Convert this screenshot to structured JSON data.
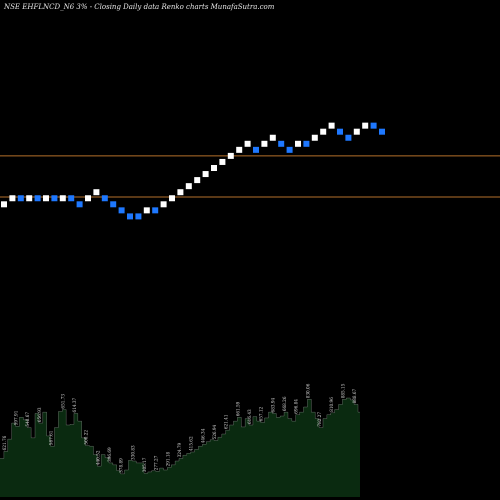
{
  "chart_data": {
    "type": "renko",
    "title": "NSE EHFLNCD_N6  3% - Closing Daily data  Renko  charts MunafaSutra.com",
    "colors": {
      "background": "#000000",
      "up_brick": "#ffffff",
      "down_brick": "#1e78ff",
      "reference_line": "#b5702b",
      "volume_fill": "#0a2a10",
      "volume_edge": "#e8e8e8",
      "label": "#d8d8d8"
    },
    "brick_levels": [
      0,
      1,
      1,
      1,
      1,
      1,
      1,
      1,
      1,
      0,
      1,
      2,
      1,
      0,
      -1,
      -2,
      -2,
      -1,
      -1,
      0,
      1,
      2,
      3,
      4,
      5,
      6,
      7,
      8,
      9,
      10,
      9,
      10,
      11,
      10,
      9,
      10,
      10,
      11,
      12,
      13,
      12,
      11,
      12,
      13,
      13,
      12
    ],
    "brick_dirs": [
      "up",
      "up",
      "down",
      "up",
      "down",
      "up",
      "down",
      "up",
      "down",
      "down",
      "up",
      "up",
      "down",
      "down",
      "down",
      "down",
      "down",
      "up",
      "down",
      "up",
      "up",
      "up",
      "up",
      "up",
      "up",
      "up",
      "up",
      "up",
      "up",
      "up",
      "down",
      "up",
      "up",
      "down",
      "down",
      "up",
      "down",
      "up",
      "up",
      "up",
      "down",
      "down",
      "up",
      "up",
      "down",
      "down"
    ],
    "reference_levels": [
      8.0,
      1.2
    ],
    "volume": {
      "values": [
        300,
        355,
        450,
        575,
        550,
        620,
        600,
        540,
        460,
        650,
        575,
        660,
        475,
        395,
        540,
        665,
        680,
        560,
        565,
        650,
        590,
        460,
        400,
        395,
        330,
        240,
        330,
        305,
        265,
        250,
        205,
        180,
        210,
        285,
        280,
        265,
        265,
        185,
        195,
        205,
        200,
        225,
        210,
        230,
        250,
        280,
        300,
        325,
        340,
        350,
        370,
        395,
        410,
        430,
        445,
        440,
        465,
        490,
        520,
        560,
        590,
        620,
        545,
        610,
        560,
        625,
        590,
        580,
        615,
        660,
        650,
        620,
        630,
        660,
        610,
        590,
        640,
        660,
        700,
        760,
        660,
        610,
        540,
        610,
        640,
        655,
        680,
        720,
        760,
        770,
        755,
        720,
        660
      ],
      "labels": [
        {
          "i": 1,
          "text": "621.76"
        },
        {
          "i": 4,
          "text": "597.91"
        },
        {
          "i": 7,
          "text": "548.67"
        },
        {
          "i": 10,
          "text": "656.93"
        },
        {
          "i": 13,
          "text": "587.61"
        },
        {
          "i": 16,
          "text": "651.73"
        },
        {
          "i": 19,
          "text": "614.37"
        },
        {
          "i": 22,
          "text": "500.22"
        },
        {
          "i": 25,
          "text": "440.52"
        },
        {
          "i": 28,
          "text": "396.69"
        },
        {
          "i": 31,
          "text": "378.89"
        },
        {
          "i": 34,
          "text": "330.83"
        },
        {
          "i": 37,
          "text": "305.17"
        },
        {
          "i": 40,
          "text": "277.27"
        },
        {
          "i": 43,
          "text": "291.18"
        },
        {
          "i": 46,
          "text": "324.79"
        },
        {
          "i": 49,
          "text": "415.62"
        },
        {
          "i": 52,
          "text": "446.34"
        },
        {
          "i": 55,
          "text": "526.94"
        },
        {
          "i": 58,
          "text": "621.41"
        },
        {
          "i": 61,
          "text": "661.59"
        },
        {
          "i": 64,
          "text": "616.43"
        },
        {
          "i": 67,
          "text": "657.12"
        },
        {
          "i": 70,
          "text": "683.94"
        },
        {
          "i": 73,
          "text": "668.26"
        },
        {
          "i": 76,
          "text": "696.84"
        },
        {
          "i": 79,
          "text": "830.06"
        },
        {
          "i": 82,
          "text": "782.27"
        },
        {
          "i": 85,
          "text": "810.96"
        },
        {
          "i": 88,
          "text": "885.15"
        },
        {
          "i": 91,
          "text": "888.67"
        }
      ]
    }
  }
}
